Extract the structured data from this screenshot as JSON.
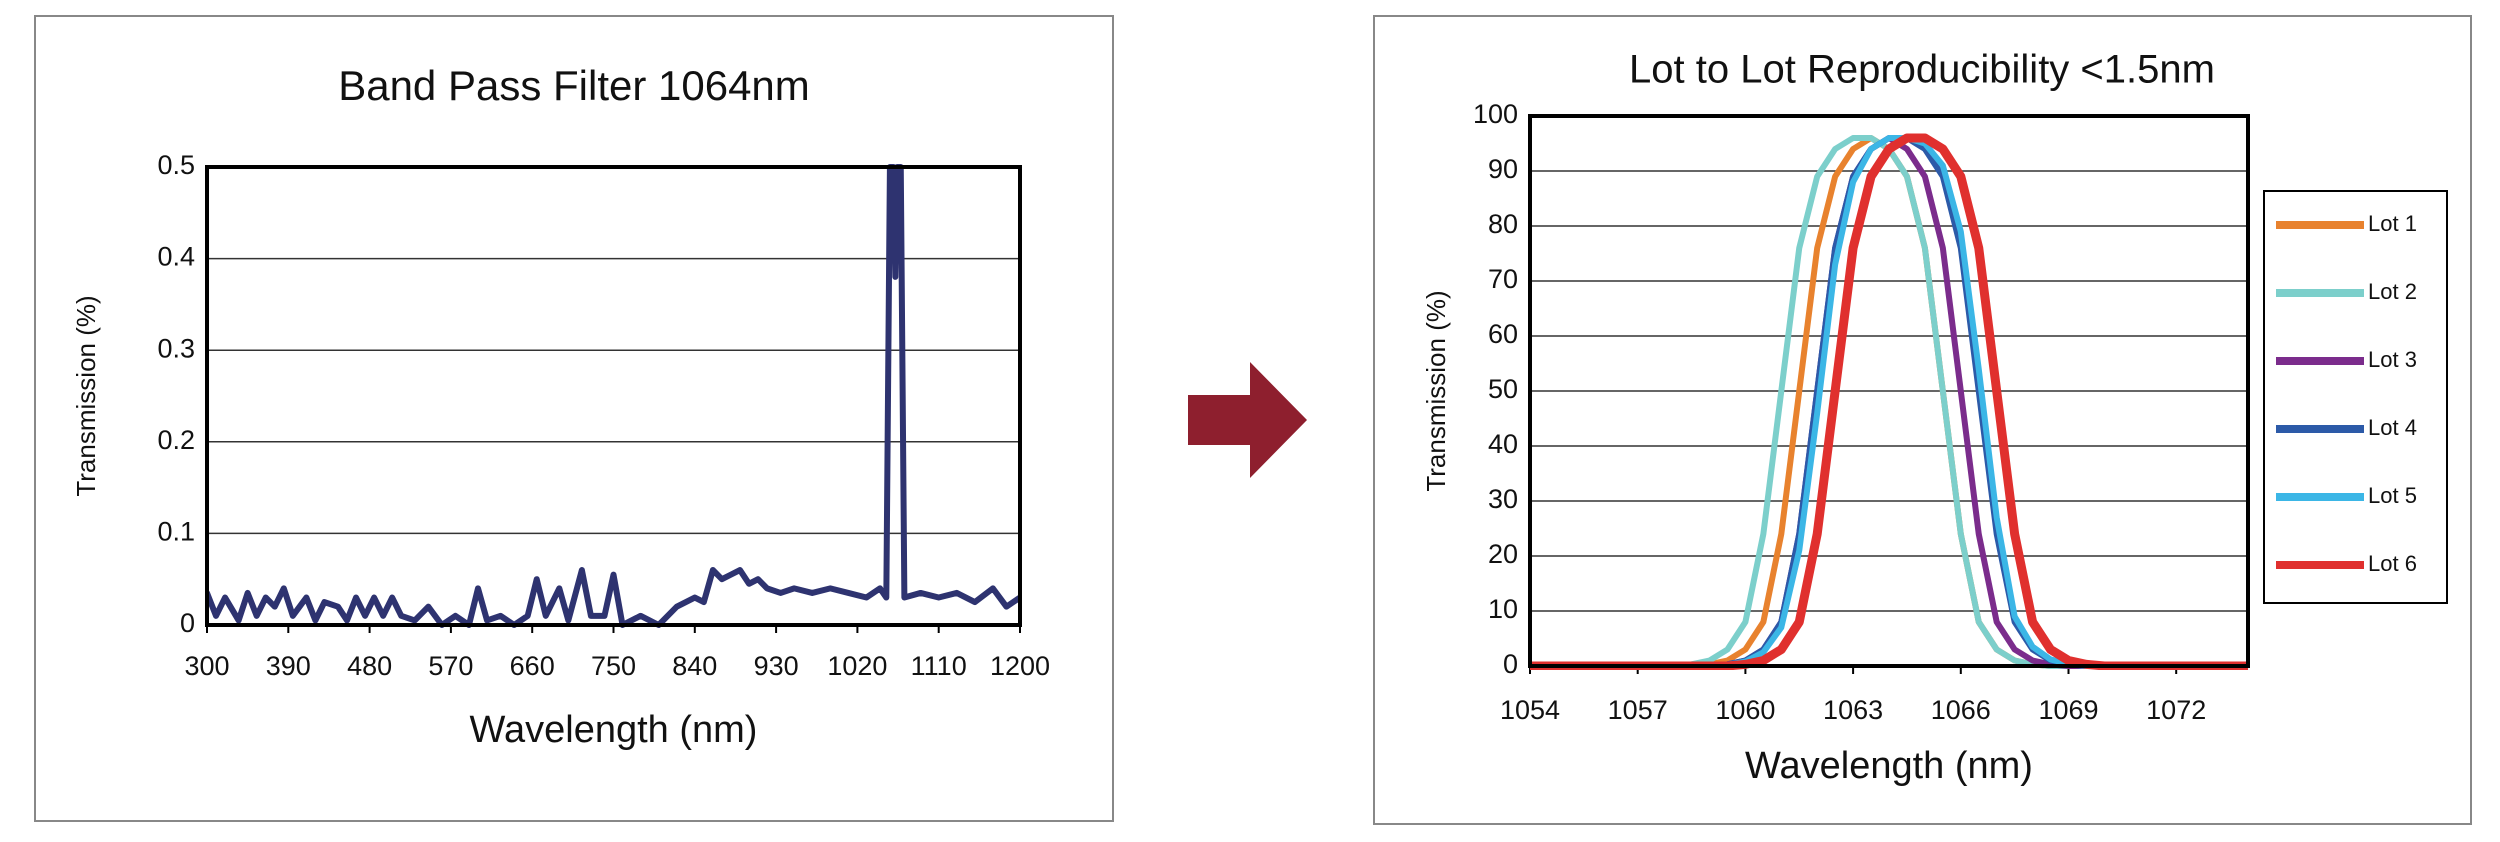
{
  "chart_data": [
    {
      "type": "line",
      "title": "Band Pass Filter 1064nm",
      "x_label": "Wavelength  (nm)",
      "y_label": "Transmission (%)",
      "x": [
        300,
        310,
        320,
        335,
        345,
        355,
        365,
        375,
        385,
        395,
        410,
        420,
        430,
        445,
        455,
        465,
        475,
        485,
        495,
        505,
        515,
        530,
        545,
        560,
        575,
        590,
        600,
        610,
        625,
        640,
        655,
        665,
        675,
        690,
        700,
        715,
        725,
        740,
        750,
        760,
        780,
        800,
        820,
        840,
        850,
        860,
        870,
        880,
        890,
        900,
        910,
        920,
        935,
        950,
        970,
        990,
        1010,
        1030,
        1045,
        1052,
        1056,
        1060,
        1062,
        1064,
        1068,
        1072,
        1090,
        1110,
        1130,
        1150,
        1170,
        1185,
        1200
      ],
      "values": [
        0.035,
        0.01,
        0.03,
        0.005,
        0.035,
        0.01,
        0.03,
        0.02,
        0.04,
        0.01,
        0.03,
        0.005,
        0.025,
        0.02,
        0.005,
        0.03,
        0.01,
        0.03,
        0.01,
        0.03,
        0.01,
        0.005,
        0.02,
        0.0,
        0.01,
        0.0,
        0.04,
        0.005,
        0.01,
        0.0,
        0.01,
        0.05,
        0.01,
        0.04,
        0.005,
        0.06,
        0.01,
        0.01,
        0.055,
        0.0,
        0.01,
        0.0,
        0.02,
        0.03,
        0.025,
        0.06,
        0.05,
        0.055,
        0.06,
        0.045,
        0.05,
        0.04,
        0.035,
        0.04,
        0.035,
        0.04,
        0.035,
        0.03,
        0.04,
        0.03,
        0.5,
        0.5,
        0.38,
        0.5,
        0.5,
        0.03,
        0.035,
        0.03,
        0.035,
        0.025,
        0.04,
        0.02,
        0.03
      ],
      "color": "#2e3370",
      "xlim": [
        300,
        1200
      ],
      "xticks": [
        300,
        390,
        480,
        570,
        660,
        750,
        840,
        930,
        1020,
        1110,
        1200
      ],
      "ylim": [
        0,
        0.5
      ],
      "yticks": [
        0,
        0.1,
        0.2,
        0.3,
        0.4,
        0.5
      ],
      "grid": true
    },
    {
      "type": "line",
      "title": "Lot to Lot Reproducibility <1.5nm",
      "x_label": "Wavelength (nm)",
      "y_label": "Transmission (%)",
      "x": [
        1054,
        1056,
        1058,
        1058.5,
        1059,
        1059.5,
        1060,
        1060.5,
        1061,
        1061.5,
        1062,
        1062.5,
        1063,
        1063.5,
        1064,
        1064.5,
        1065,
        1065.5,
        1066,
        1066.5,
        1067,
        1067.5,
        1068,
        1068.5,
        1069,
        1069.5,
        1070,
        1072,
        1074
      ],
      "series": [
        {
          "name": "Lot 1",
          "color": "#e8822e",
          "values": [
            0,
            0,
            0,
            0,
            0.3,
            1,
            3,
            8,
            24,
            50,
            76,
            89,
            94,
            96,
            94,
            89,
            76,
            50,
            24,
            8,
            3,
            1,
            0.3,
            0,
            0,
            0,
            0,
            0,
            0
          ]
        },
        {
          "name": "Lot 2",
          "color": "#7ccfcb",
          "values": [
            0,
            0,
            0,
            0.3,
            1,
            3,
            8,
            24,
            50,
            76,
            89,
            94,
            96,
            96,
            94,
            89,
            76,
            50,
            24,
            8,
            3,
            1,
            0.3,
            0,
            0,
            0,
            0,
            0,
            0
          ]
        },
        {
          "name": "Lot 3",
          "color": "#7b2c8c",
          "values": [
            0,
            0,
            0,
            0,
            0,
            0.3,
            1,
            3,
            8,
            24,
            50,
            76,
            89,
            94,
            96,
            94,
            89,
            76,
            50,
            24,
            8,
            3,
            1,
            0.3,
            0,
            0,
            0,
            0,
            0
          ]
        },
        {
          "name": "Lot 4",
          "color": "#2c5aa8",
          "values": [
            0,
            0,
            0,
            0,
            0,
            0.3,
            1,
            3,
            8,
            24,
            50,
            76,
            89,
            94,
            96,
            96,
            94,
            89,
            76,
            50,
            24,
            8,
            3,
            1,
            0.3,
            0,
            0,
            0,
            0
          ]
        },
        {
          "name": "Lot 5",
          "color": "#3bb6e6",
          "values": [
            0,
            0,
            0,
            0,
            0,
            0.2,
            0.8,
            2.5,
            7,
            21,
            46,
            73,
            88,
            94,
            96,
            96,
            95,
            91,
            79,
            54,
            27,
            9,
            3.5,
            1.2,
            0.4,
            0,
            0,
            0,
            0
          ]
        },
        {
          "name": "Lot 6",
          "color": "#e0302e",
          "values": [
            0,
            0,
            0,
            0,
            0,
            0,
            0.3,
            1,
            3,
            8,
            24,
            50,
            76,
            89,
            94,
            96,
            96,
            94,
            89,
            76,
            50,
            24,
            8,
            3,
            1,
            0.3,
            0,
            0,
            0
          ]
        }
      ],
      "xlim": [
        1054,
        1074
      ],
      "xticks": [
        1054,
        1057,
        1060,
        1063,
        1066,
        1069,
        1072
      ],
      "ylim": [
        0,
        100
      ],
      "yticks": [
        0,
        10,
        20,
        30,
        40,
        50,
        60,
        70,
        80,
        90,
        100
      ],
      "grid": true,
      "legend": "right"
    }
  ]
}
